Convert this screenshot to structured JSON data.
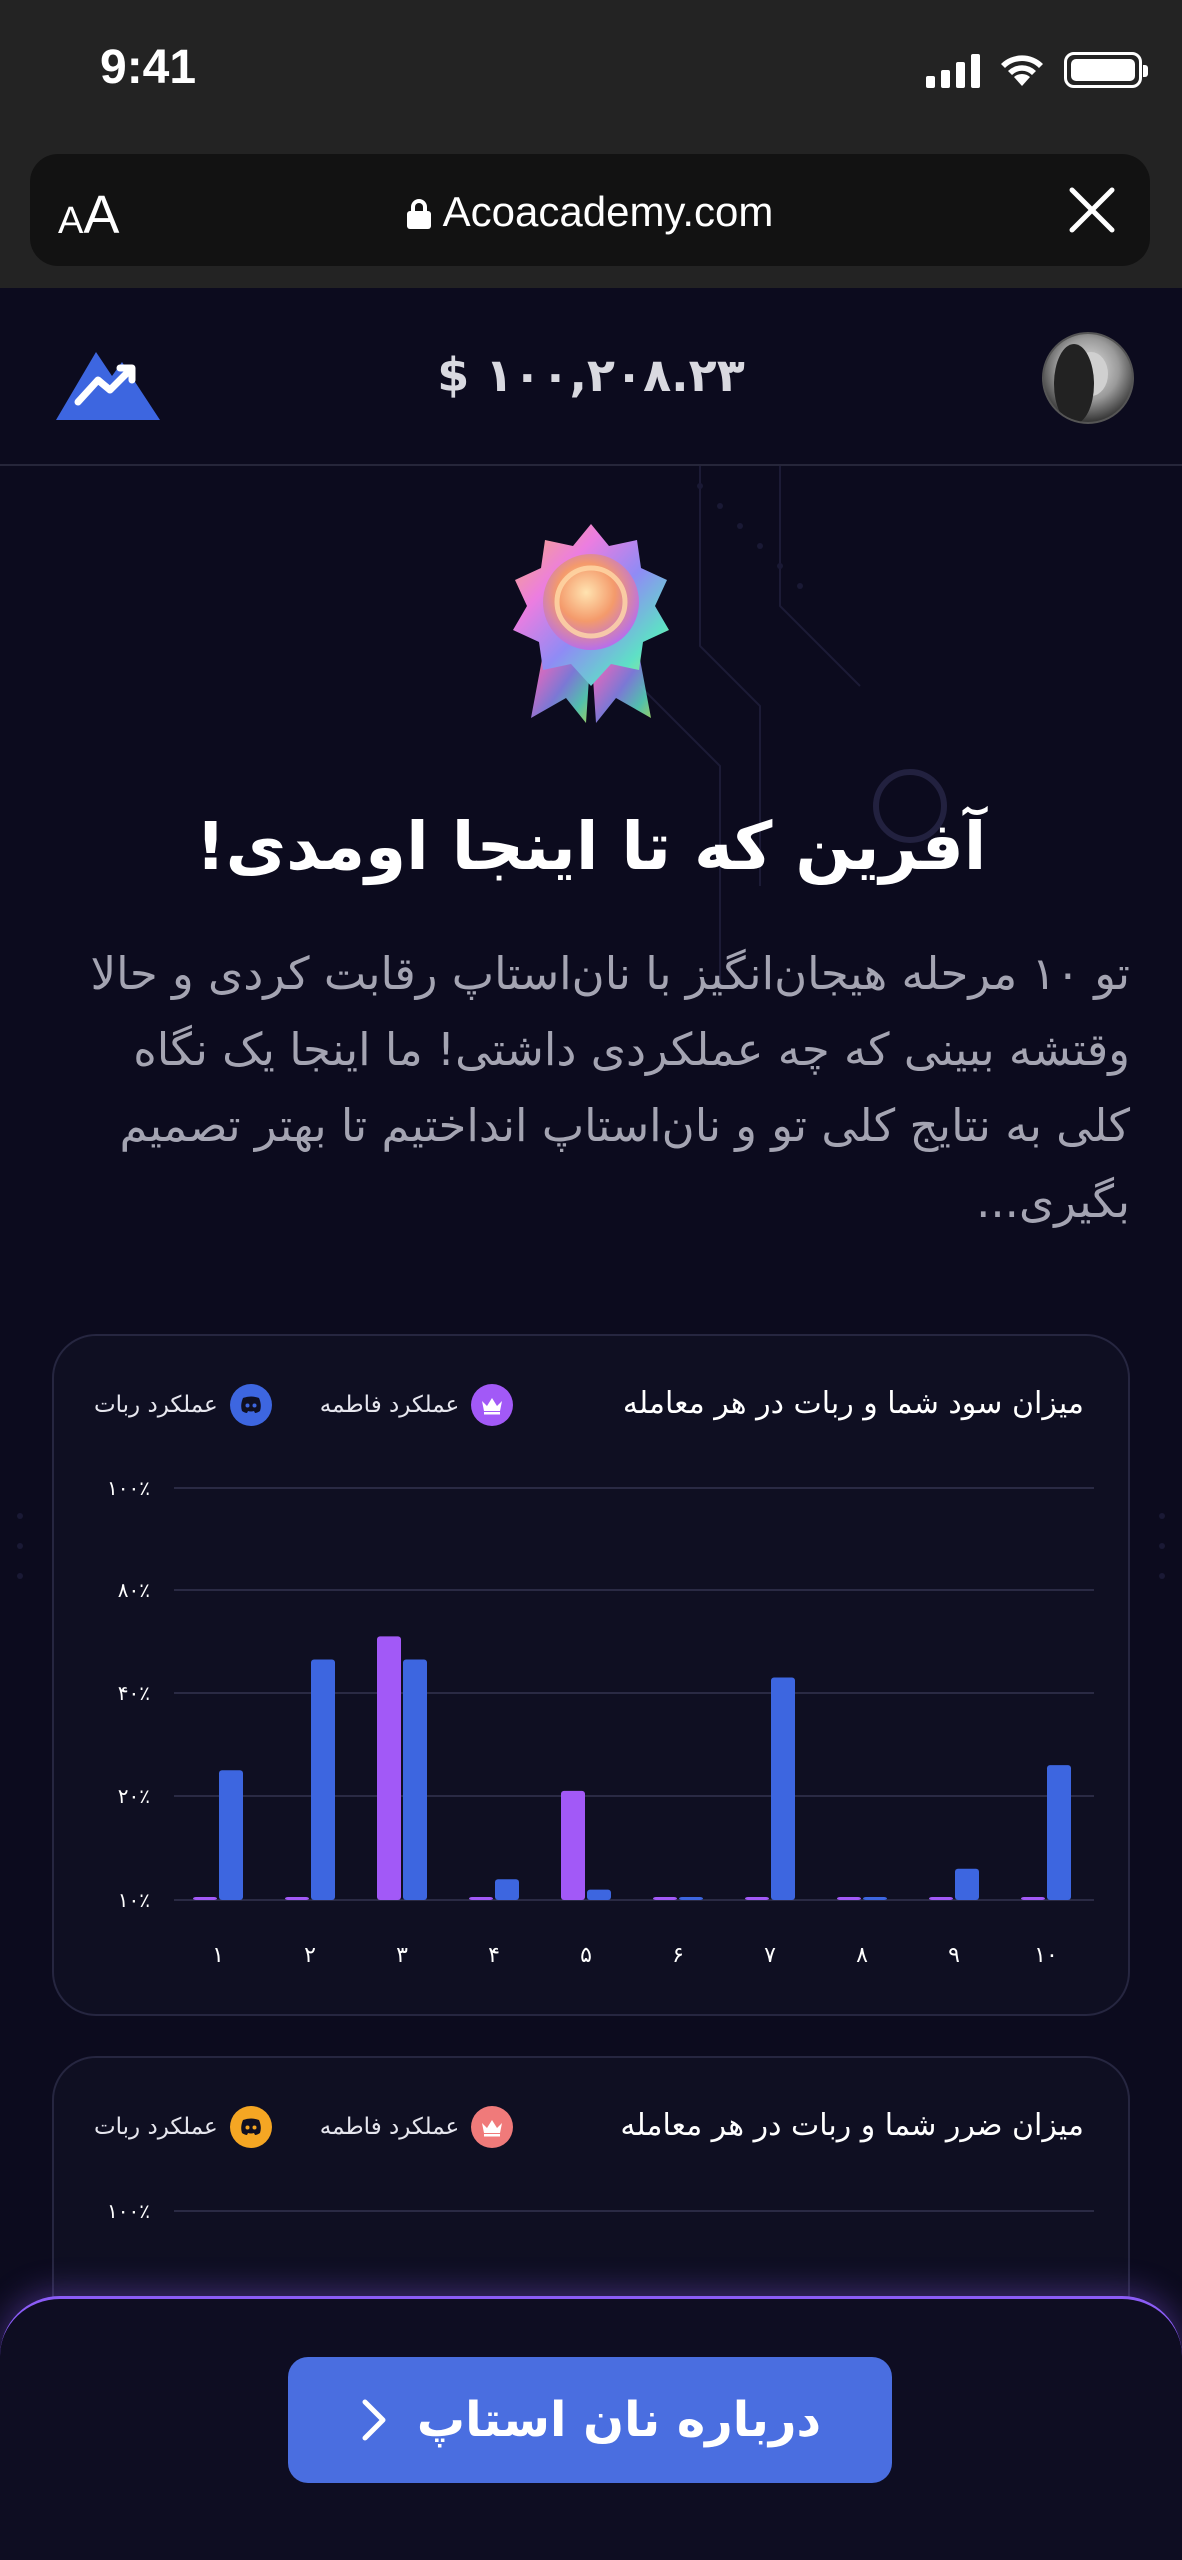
{
  "status_bar": {
    "time": "9:41"
  },
  "browser": {
    "text_size_small": "A",
    "text_size_big": "A",
    "url": "Acoacademy.com"
  },
  "header": {
    "balance": "$ ۱۰۰,۲۰۸.۲۳"
  },
  "hero": {
    "title": "آفرین که تا اینجا اومدی!",
    "description": "تو ۱۰ مرحله هیجان‌انگیز با نان‌استاپ رقابت کردی و حالا وقتشه ببینی که چه عملکردی داشتی! ما اینجا یک نگاه کلی به نتایج کلی تو و نان‌استاپ انداختیم تا بهتر تصمیم بگیری..."
  },
  "profit_card": {
    "title": "میزان سود شما و ربات در هر معامله",
    "legend_user": "عملکرد فاطمه",
    "legend_bot": "عملکرد ربات",
    "user_color": "#a259f7",
    "bot_color": "#3d66e0",
    "user_icon": "crown-icon",
    "bot_icon": "discord-icon"
  },
  "loss_card": {
    "title": "میزان ضرر شما و ربات در هر معامله",
    "legend_user": "عملکرد فاطمه",
    "legend_bot": "عملکرد ربات",
    "user_color": "#f07a7a",
    "bot_color": "#f5a623",
    "user_icon": "crown-icon",
    "bot_icon": "discord-icon",
    "first_tick": "۱۰۰٪"
  },
  "chart_data": [
    {
      "type": "bar",
      "title": "میزان سود شما و ربات در هر معامله",
      "categories": [
        "۱",
        "۲",
        "۳",
        "۴",
        "۵",
        "۶",
        "۷",
        "۸",
        "۹",
        "۱۰"
      ],
      "y_tick_labels": [
        "۱۰۰٪",
        "۸۰٪",
        "۴۰٪",
        "۲۰٪",
        "۱۰٪"
      ],
      "series": [
        {
          "name": "عملکرد فاطمه",
          "values": [
            0.5,
            0.5,
            62,
            4,
            21,
            0.5,
            0.5,
            0.5,
            0.5,
            0.5
          ]
        },
        {
          "name": "عملکرد ربات",
          "values": [
            25,
            53,
            53,
            12,
            11,
            0.5,
            46,
            0.5,
            13,
            26
          ]
        }
      ],
      "legend": "top-left",
      "grid": true
    }
  ],
  "cta": {
    "label": "درباره نان استاپ",
    "icon": "chevron-right-icon"
  }
}
